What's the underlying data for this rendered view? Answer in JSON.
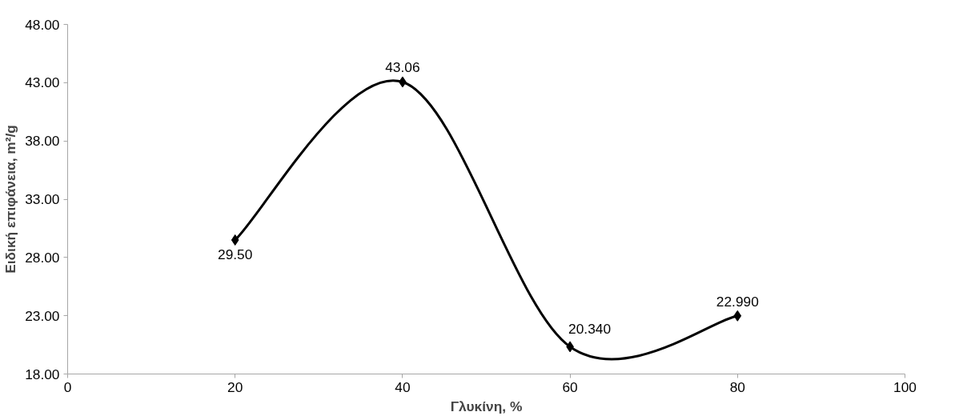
{
  "chart_data": {
    "type": "line",
    "xlabel": "Γλυκίνη, %",
    "ylabel": "Ειδική επιφάνεια, m²/g",
    "x": [
      20,
      40,
      60,
      80
    ],
    "series": [
      {
        "color": "#000000",
        "values": [
          29.5,
          43.06,
          20.34,
          22.99
        ],
        "value_labels": [
          "29.50",
          "43.06",
          "20.340",
          "22.990"
        ]
      }
    ],
    "xlim": [
      0,
      100
    ],
    "xticks": [
      0,
      20,
      40,
      60,
      80,
      100
    ],
    "ylim": [
      18,
      48
    ],
    "yticks": [
      {
        "value": 18,
        "label": "18.00"
      },
      {
        "value": 23,
        "label": "23.00"
      },
      {
        "value": 28,
        "label": "28.00"
      },
      {
        "value": 33,
        "label": "33.00"
      },
      {
        "value": 38,
        "label": "38.00"
      },
      {
        "value": 43,
        "label": "43.00"
      },
      {
        "value": 48,
        "label": "48.00"
      }
    ],
    "marker": "diamond",
    "line_style": "solid",
    "grid": false
  }
}
